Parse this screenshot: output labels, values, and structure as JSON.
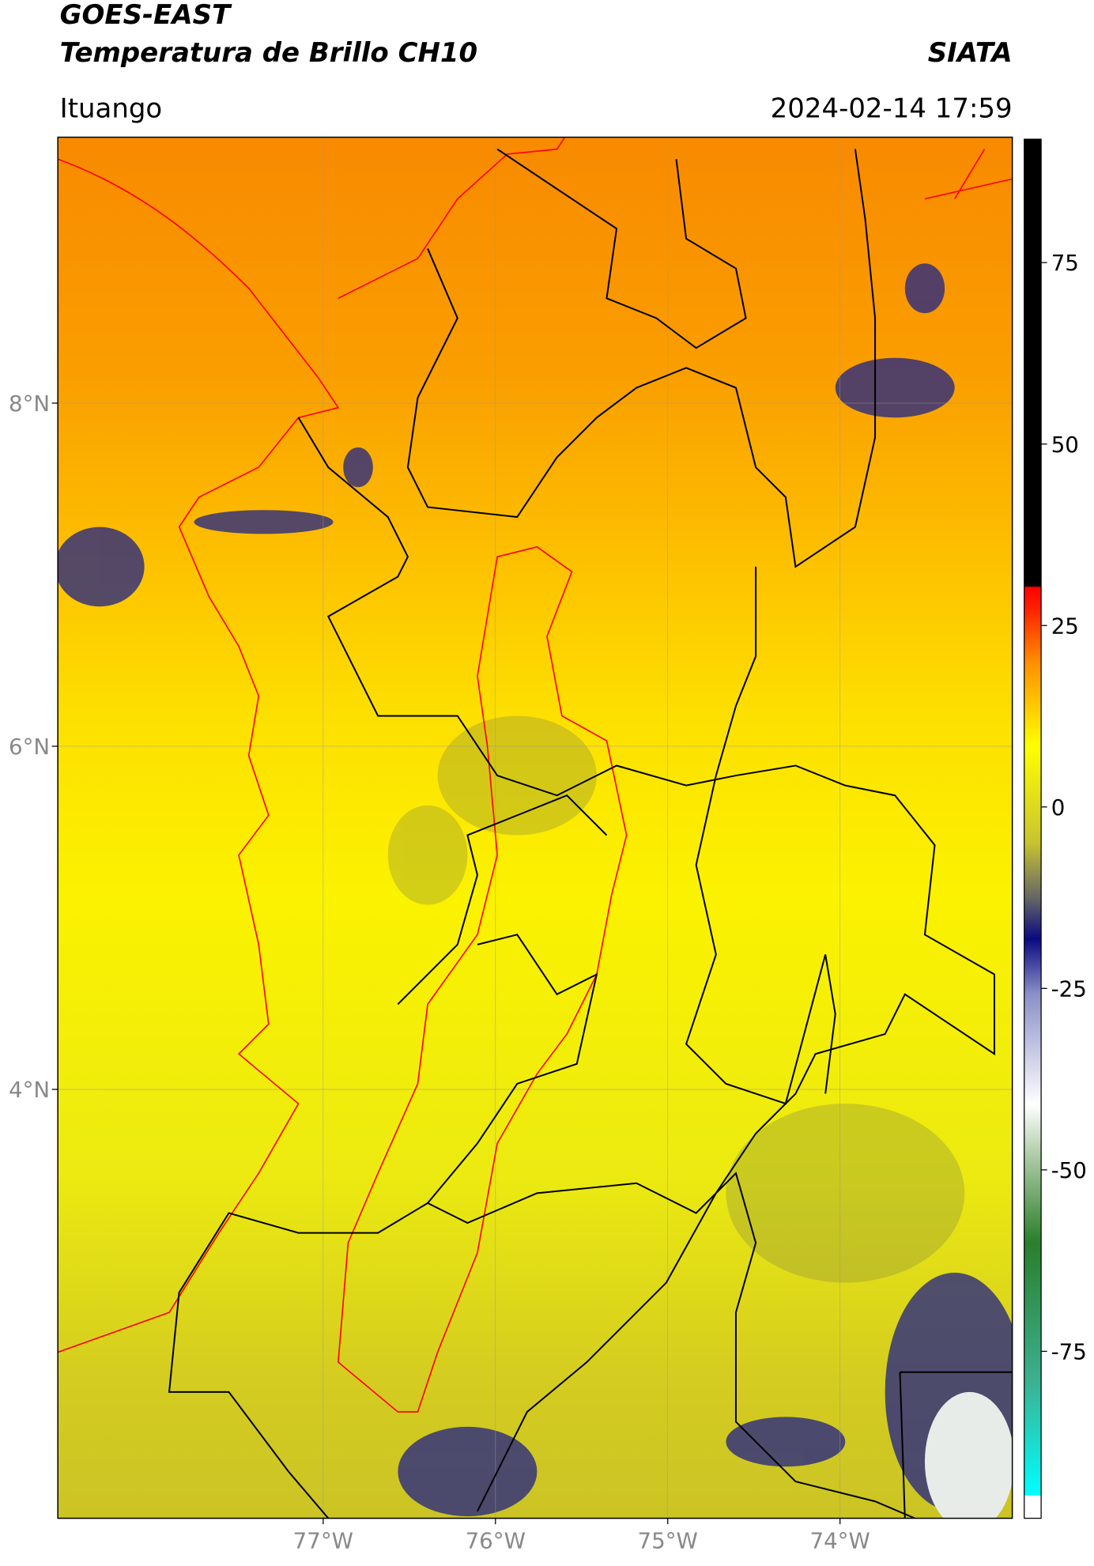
{
  "map": {
    "title": "GOES-EAST",
    "subtitle": "Temperatura de Brillo CH10",
    "source": "SIATA",
    "location": "Ituango",
    "datetime": "2024-02-14 17:59",
    "lon_range": [
      -78.54,
      -73.0
    ],
    "lat_range": [
      1.5,
      9.55
    ],
    "lon_ticks": [
      {
        "value": -77,
        "label": "77°W"
      },
      {
        "value": -76,
        "label": "76°W"
      },
      {
        "value": -75,
        "label": "75°W"
      },
      {
        "value": -74,
        "label": "74°W"
      }
    ],
    "lat_ticks": [
      {
        "value": 8,
        "label": "8°N"
      },
      {
        "value": 6,
        "label": "6°N"
      },
      {
        "value": 4,
        "label": "4°N"
      }
    ],
    "colorbar": {
      "range": [
        -98,
        92
      ],
      "ticks": [
        75,
        50,
        25,
        0,
        -25,
        -50,
        -75
      ]
    }
  }
}
